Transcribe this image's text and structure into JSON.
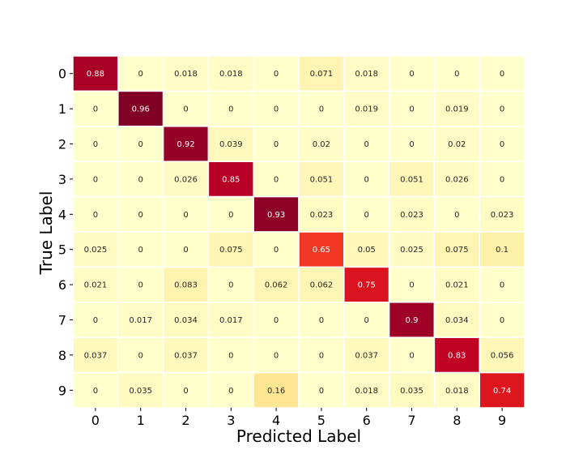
{
  "chart_data": {
    "type": "heatmap",
    "title": "",
    "xlabel": "Predicted Label",
    "ylabel": "True Label",
    "x_categories": [
      "0",
      "1",
      "2",
      "3",
      "4",
      "5",
      "6",
      "7",
      "8",
      "9"
    ],
    "y_categories": [
      "0",
      "1",
      "2",
      "3",
      "4",
      "5",
      "6",
      "7",
      "8",
      "9"
    ],
    "colormap": "YlOrRd",
    "value_range": [
      0,
      0.96
    ],
    "values": [
      [
        0.88,
        0,
        0.018,
        0.018,
        0,
        0.071,
        0.018,
        0,
        0,
        0
      ],
      [
        0,
        0.96,
        0,
        0,
        0,
        0,
        0.019,
        0,
        0.019,
        0
      ],
      [
        0,
        0,
        0.92,
        0.039,
        0,
        0.02,
        0,
        0,
        0.02,
        0
      ],
      [
        0,
        0,
        0.026,
        0.85,
        0,
        0.051,
        0,
        0.051,
        0.026,
        0
      ],
      [
        0,
        0,
        0,
        0,
        0.93,
        0.023,
        0,
        0.023,
        0,
        0.023
      ],
      [
        0.025,
        0,
        0,
        0.075,
        0,
        0.65,
        0.05,
        0.025,
        0.075,
        0.1
      ],
      [
        0.021,
        0,
        0.083,
        0,
        0.062,
        0.062,
        0.75,
        0,
        0.021,
        0
      ],
      [
        0,
        0.017,
        0.034,
        0.017,
        0,
        0,
        0,
        0.9,
        0.034,
        0
      ],
      [
        0.037,
        0,
        0.037,
        0,
        0,
        0,
        0.037,
        0,
        0.83,
        0.056
      ],
      [
        0,
        0.035,
        0,
        0,
        0.16,
        0,
        0.018,
        0.035,
        0.018,
        0.74
      ]
    ],
    "labels": [
      [
        "0.88",
        "0",
        "0.018",
        "0.018",
        "0",
        "0.071",
        "0.018",
        "0",
        "0",
        "0"
      ],
      [
        "0",
        "0.96",
        "0",
        "0",
        "0",
        "0",
        "0.019",
        "0",
        "0.019",
        "0"
      ],
      [
        "0",
        "0",
        "0.92",
        "0.039",
        "0",
        "0.02",
        "0",
        "0",
        "0.02",
        "0"
      ],
      [
        "0",
        "0",
        "0.026",
        "0.85",
        "0",
        "0.051",
        "0",
        "0.051",
        "0.026",
        "0"
      ],
      [
        "0",
        "0",
        "0",
        "0",
        "0.93",
        "0.023",
        "0",
        "0.023",
        "0",
        "0.023"
      ],
      [
        "0.025",
        "0",
        "0",
        "0.075",
        "0",
        "0.65",
        "0.05",
        "0.025",
        "0.075",
        "0.1"
      ],
      [
        "0.021",
        "0",
        "0.083",
        "0",
        "0.062",
        "0.062",
        "0.75",
        "0",
        "0.021",
        "0"
      ],
      [
        "0",
        "0.017",
        "0.034",
        "0.017",
        "0",
        "0",
        "0",
        "0.9",
        "0.034",
        "0"
      ],
      [
        "0.037",
        "0",
        "0.037",
        "0",
        "0",
        "0",
        "0.037",
        "0",
        "0.83",
        "0.056"
      ],
      [
        "0",
        "0.035",
        "0",
        "0",
        "0.16",
        "0",
        "0.018",
        "0.035",
        "0.018",
        "0.74"
      ]
    ],
    "grid": false,
    "legend": "none"
  }
}
